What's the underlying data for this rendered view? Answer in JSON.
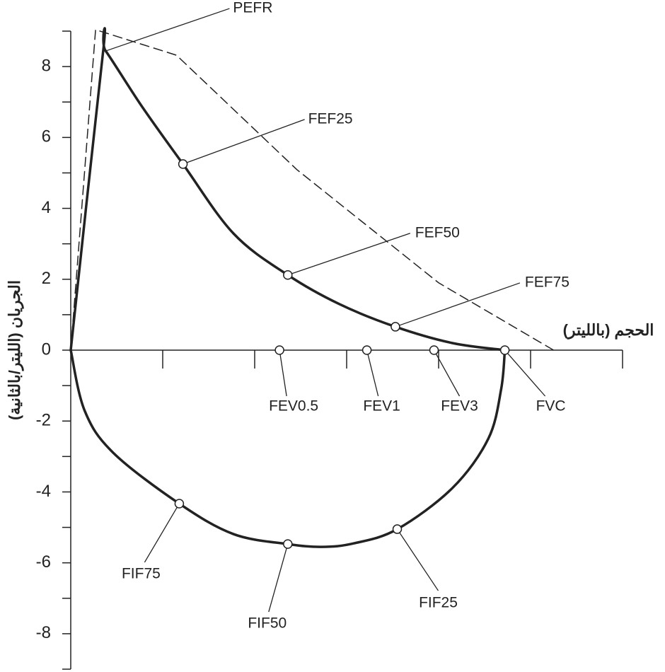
{
  "chart_data": {
    "type": "line",
    "x_label": "الحجم (باللیتر)",
    "y_label": "الجريان (الليتر/بالثانية)",
    "xlim": [
      0,
      6
    ],
    "ylim": [
      -9,
      9
    ],
    "xticks": [
      1,
      2,
      3,
      4,
      5,
      6
    ],
    "yticks": [
      -8,
      -6,
      -4,
      -2,
      0,
      2,
      4,
      6,
      8
    ],
    "yminorticks": [
      -9,
      -7,
      -5,
      -3,
      -1,
      1,
      3,
      5,
      7,
      9
    ],
    "series": [
      {
        "color": "#222222",
        "style": "dashed",
        "x": [
          0,
          0.27,
          1.15,
          2.46,
          4.0,
          5.25
        ],
        "y": [
          0,
          9.04,
          8.32,
          5.09,
          1.9,
          0
        ]
      },
      {
        "color": "#222222",
        "style": "solid",
        "x": [
          0,
          0.35,
          0.38,
          0.77,
          1.22,
          1.77,
          2.36,
          2.92,
          3.53,
          4.15,
          4.72
        ],
        "y": [
          0,
          8.38,
          8.44,
          6.89,
          5.25,
          3.29,
          2.12,
          1.3,
          0.66,
          0.2,
          0
        ]
      },
      {
        "color": "#222222",
        "style": "solid",
        "x": [
          0,
          0.15,
          0.46,
          1.18,
          1.77,
          2.36,
          2.73,
          3.08,
          3.55,
          4.15,
          4.54,
          4.68,
          4.72
        ],
        "y": [
          0,
          -1.7,
          -2.89,
          -4.33,
          -5.19,
          -5.47,
          -5.55,
          -5.45,
          -5.05,
          -3.89,
          -2.5,
          -1.1,
          0
        ]
      }
    ],
    "points": [
      {
        "label": "PEFR",
        "x": 0.38,
        "y": 8.44,
        "marker": false
      },
      {
        "label": "FEF25",
        "x": 1.22,
        "y": 5.25,
        "marker": true
      },
      {
        "label": "FEF50",
        "x": 2.36,
        "y": 2.12,
        "marker": true
      },
      {
        "label": "FEF75",
        "x": 3.53,
        "y": 0.66,
        "marker": true
      },
      {
        "label": "FEV0.5",
        "x": 2.27,
        "y": 0,
        "marker": true
      },
      {
        "label": "FEV1",
        "x": 3.22,
        "y": 0,
        "marker": true
      },
      {
        "label": "FEV3",
        "x": 3.95,
        "y": 0,
        "marker": true
      },
      {
        "label": "FVC",
        "x": 4.72,
        "y": 0,
        "marker": true
      },
      {
        "label": "FIF75",
        "x": 1.18,
        "y": -4.33,
        "marker": true
      },
      {
        "label": "FIF50",
        "x": 2.36,
        "y": -5.47,
        "marker": true
      },
      {
        "label": "FIF25",
        "x": 3.55,
        "y": -5.05,
        "marker": true
      }
    ]
  }
}
